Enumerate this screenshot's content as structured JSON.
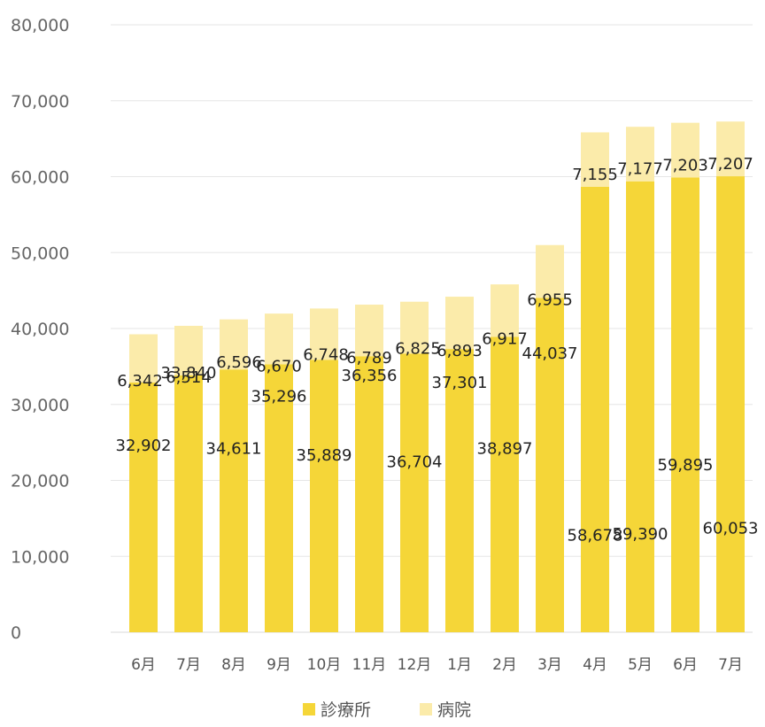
{
  "chart_data": {
    "type": "bar",
    "stacked": true,
    "categories": [
      "6月",
      "7月",
      "8月",
      "9月",
      "10月",
      "11月",
      "12月",
      "1月",
      "2月",
      "3月",
      "4月",
      "5月",
      "6月",
      "7月"
    ],
    "series": [
      {
        "name": "診療所",
        "color": "#f5d638",
        "values": [
          32902,
          33840,
          34611,
          35296,
          35889,
          36356,
          36704,
          37301,
          38897,
          44037,
          58678,
          59390,
          59895,
          60053
        ]
      },
      {
        "name": "病院",
        "color": "#fbebaa",
        "values": [
          6342,
          6514,
          6596,
          6670,
          6748,
          6789,
          6825,
          6893,
          6917,
          6955,
          7155,
          7177,
          7203,
          7207
        ]
      }
    ],
    "y_ticks": [
      "0",
      "10,000",
      "20,000",
      "30,000",
      "40,000",
      "50,000",
      "60,000",
      "70,000",
      "80,000"
    ],
    "ylim": [
      0,
      80000
    ],
    "grid": true,
    "legend_position": "bottom"
  }
}
